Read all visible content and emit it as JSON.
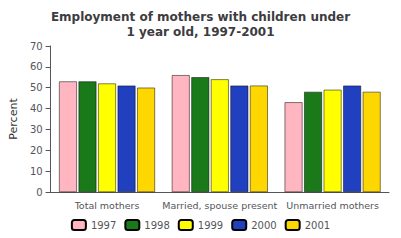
{
  "chart_data": {
    "type": "bar",
    "title": "Employment of mothers with children under\n1 year old, 1997-2001",
    "ylabel": "Percent",
    "categories": [
      "Total mothers",
      "Married, spouse present",
      "Unmarried mothers"
    ],
    "series": [
      {
        "name": "1997",
        "color": "#FFB6C1",
        "values": [
          53,
          56,
          43
        ]
      },
      {
        "name": "1998",
        "color": "#1a7a1a",
        "values": [
          53,
          55,
          48
        ]
      },
      {
        "name": "1999",
        "color": "#FFFF00",
        "values": [
          52,
          54,
          49
        ]
      },
      {
        "name": "2000",
        "color": "#2040bf",
        "values": [
          51,
          51,
          51
        ]
      },
      {
        "name": "2001",
        "color": "#FFD700",
        "values": [
          50,
          51,
          48
        ]
      }
    ],
    "ylim": [
      0,
      70
    ],
    "yticks": [
      0,
      10,
      20,
      30,
      40,
      50,
      60,
      70
    ],
    "grid": false,
    "legend": "bottom"
  }
}
